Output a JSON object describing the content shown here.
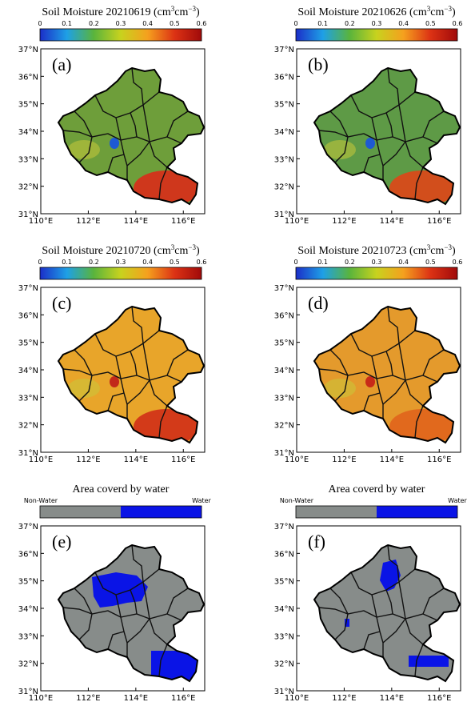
{
  "colors": {
    "gray_fill": "#878c8a",
    "water_fill": "#0a14e6",
    "border": "#000000",
    "background": "#ffffff"
  },
  "colorbar_moisture": {
    "ticks": [
      "0",
      "0.1",
      "0.2",
      "0.3",
      "0.4",
      "0.5",
      "0.6"
    ],
    "stops": [
      "#1b2ec8",
      "#1ea0e6",
      "#5ab43c",
      "#c8d21e",
      "#f5a01e",
      "#dc3214",
      "#a00a0a"
    ]
  },
  "colorbar_water": {
    "left_label": "Non-Water",
    "right_label": "Water",
    "left_color": "#878c8a",
    "right_color": "#0a14e6"
  },
  "axes": {
    "y_ticks": [
      "37°N",
      "36°N",
      "35°N",
      "34°N",
      "33°N",
      "32°N",
      "31°N"
    ],
    "x_ticks": [
      "110°E",
      "112°E",
      "114°E",
      "116°E"
    ]
  },
  "panels": [
    {
      "id": "a",
      "label": "(a)",
      "type": "moisture",
      "title_prefix": "Soil Moisture 20210619",
      "fill": "#6e9e3a",
      "south_fill": "#d4321a",
      "spot_fill": "#1e5ad2"
    },
    {
      "id": "b",
      "label": "(b)",
      "type": "moisture",
      "title_prefix": "Soil Moisture 20210626",
      "fill": "#5e9a46",
      "south_fill": "#d84a1a",
      "spot_fill": "#1e5ad2"
    },
    {
      "id": "c",
      "label": "(c)",
      "type": "moisture",
      "title_prefix": "Soil Moisture 20210720",
      "fill": "#e8a52a",
      "south_fill": "#d23418",
      "spot_fill": "#c2281a"
    },
    {
      "id": "d",
      "label": "(d)",
      "type": "moisture",
      "title_prefix": "Soil Moisture 20210723",
      "fill": "#e49a2c",
      "south_fill": "#e0661c",
      "spot_fill": "#c82a18"
    },
    {
      "id": "e",
      "label": "(e)",
      "type": "water",
      "title": "Area coverd by water",
      "fill": "#878c8a",
      "water_share": 0.2
    },
    {
      "id": "f",
      "label": "(f)",
      "type": "water",
      "title": "Area coverd by water",
      "fill": "#878c8a",
      "water_share": 0.08
    }
  ],
  "title_unit": {
    "open": "(cm",
    "sup1": "3",
    "mid": "cm",
    "sup2": "−3",
    "close": ")"
  }
}
